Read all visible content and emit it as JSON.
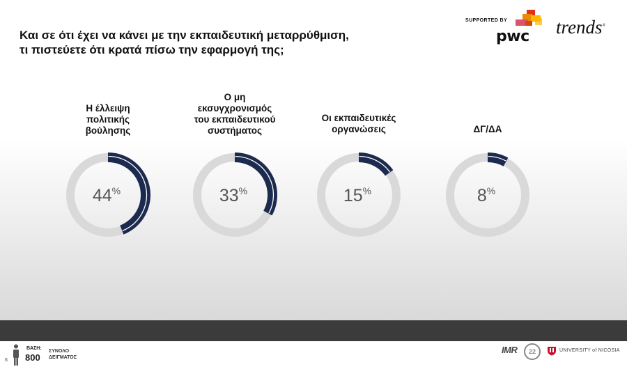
{
  "header": {
    "title_lines": [
      "Και σε ότι έχει να κάνει με την εκπαιδευτική μεταρρύθμιση,",
      "τι πιστεύετε ότι κρατά πίσω την εφαρμογή της;"
    ],
    "sponsor_label": "SUPPORTED BY",
    "pwc_logo": "pwc",
    "trends_logo": "trends",
    "trends_mark": "®"
  },
  "chart_data": {
    "type": "donut",
    "unit": "%",
    "categories": [
      {
        "label_lines": [
          "Η έλλειψη",
          "πολιτικής",
          "βούλησης"
        ],
        "value": 44
      },
      {
        "label_lines": [
          "Ο μη",
          "εκσυγχρονισμός",
          "του εκπαιδευτικού",
          "συστήματος"
        ],
        "value": 33
      },
      {
        "label_lines": [
          "Οι εκπαιδευτικές",
          "οργανώσεις"
        ],
        "value": 15
      },
      {
        "label_lines": [
          "ΔΓ/ΔΑ"
        ],
        "value": 8
      }
    ],
    "colors": {
      "filled": "#1b2a4e",
      "track": "#d9d9d9",
      "value_text": "#555555"
    }
  },
  "footer": {
    "page_number": "6",
    "base_label": "ΒΑΣΗ:",
    "base_n": "800",
    "base_desc_lines": [
      "ΣΥΝΟΛΟ",
      "ΔΕΙΓΜΑΤΟΣ"
    ],
    "imr_logo": "IMR",
    "anniversary": "22",
    "university": "UNIVERSITY of NICOSIA"
  }
}
